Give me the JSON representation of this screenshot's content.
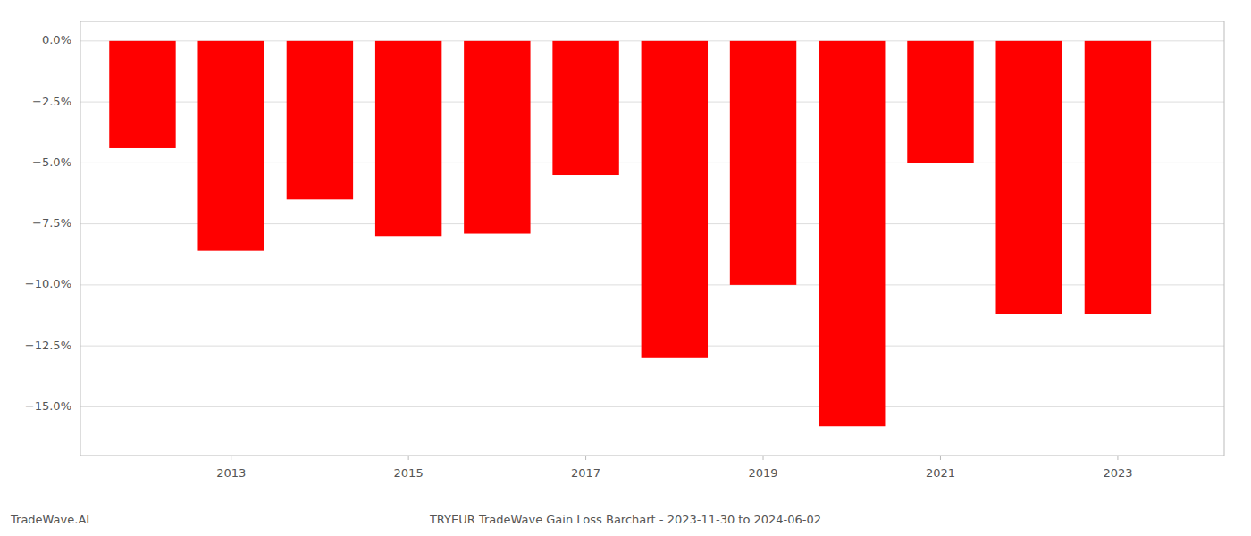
{
  "chart_data": {
    "type": "bar",
    "title": "TRYEUR TradeWave Gain Loss Barchart - 2023-11-30 to 2024-06-02",
    "annotations": [
      "TradeWave.AI"
    ],
    "x": [
      2012,
      2013,
      2014,
      2015,
      2016,
      2017,
      2018,
      2019,
      2020,
      2021,
      2022,
      2023
    ],
    "values": [
      -4.4,
      -8.6,
      -6.5,
      -8.0,
      -7.9,
      -5.5,
      -13.0,
      -10.0,
      -15.8,
      -5.0,
      -11.2,
      -11.2
    ],
    "color": "#ff0000",
    "xlim": [
      2011.3,
      2024.2
    ],
    "xticks": [
      2013,
      2015,
      2017,
      2019,
      2021,
      2023
    ],
    "ylim": [
      -17.0,
      0.8
    ],
    "yticks": [
      {
        "value": 0.0,
        "label": "0.0%"
      },
      {
        "value": -2.5,
        "label": "−2.5%"
      },
      {
        "value": -5.0,
        "label": "−5.0%"
      },
      {
        "value": -7.5,
        "label": "−7.5%"
      },
      {
        "value": -10.0,
        "label": "−10.0%"
      },
      {
        "value": -12.5,
        "label": "−12.5%"
      },
      {
        "value": -15.0,
        "label": "−15.0%"
      }
    ],
    "grid": true
  }
}
